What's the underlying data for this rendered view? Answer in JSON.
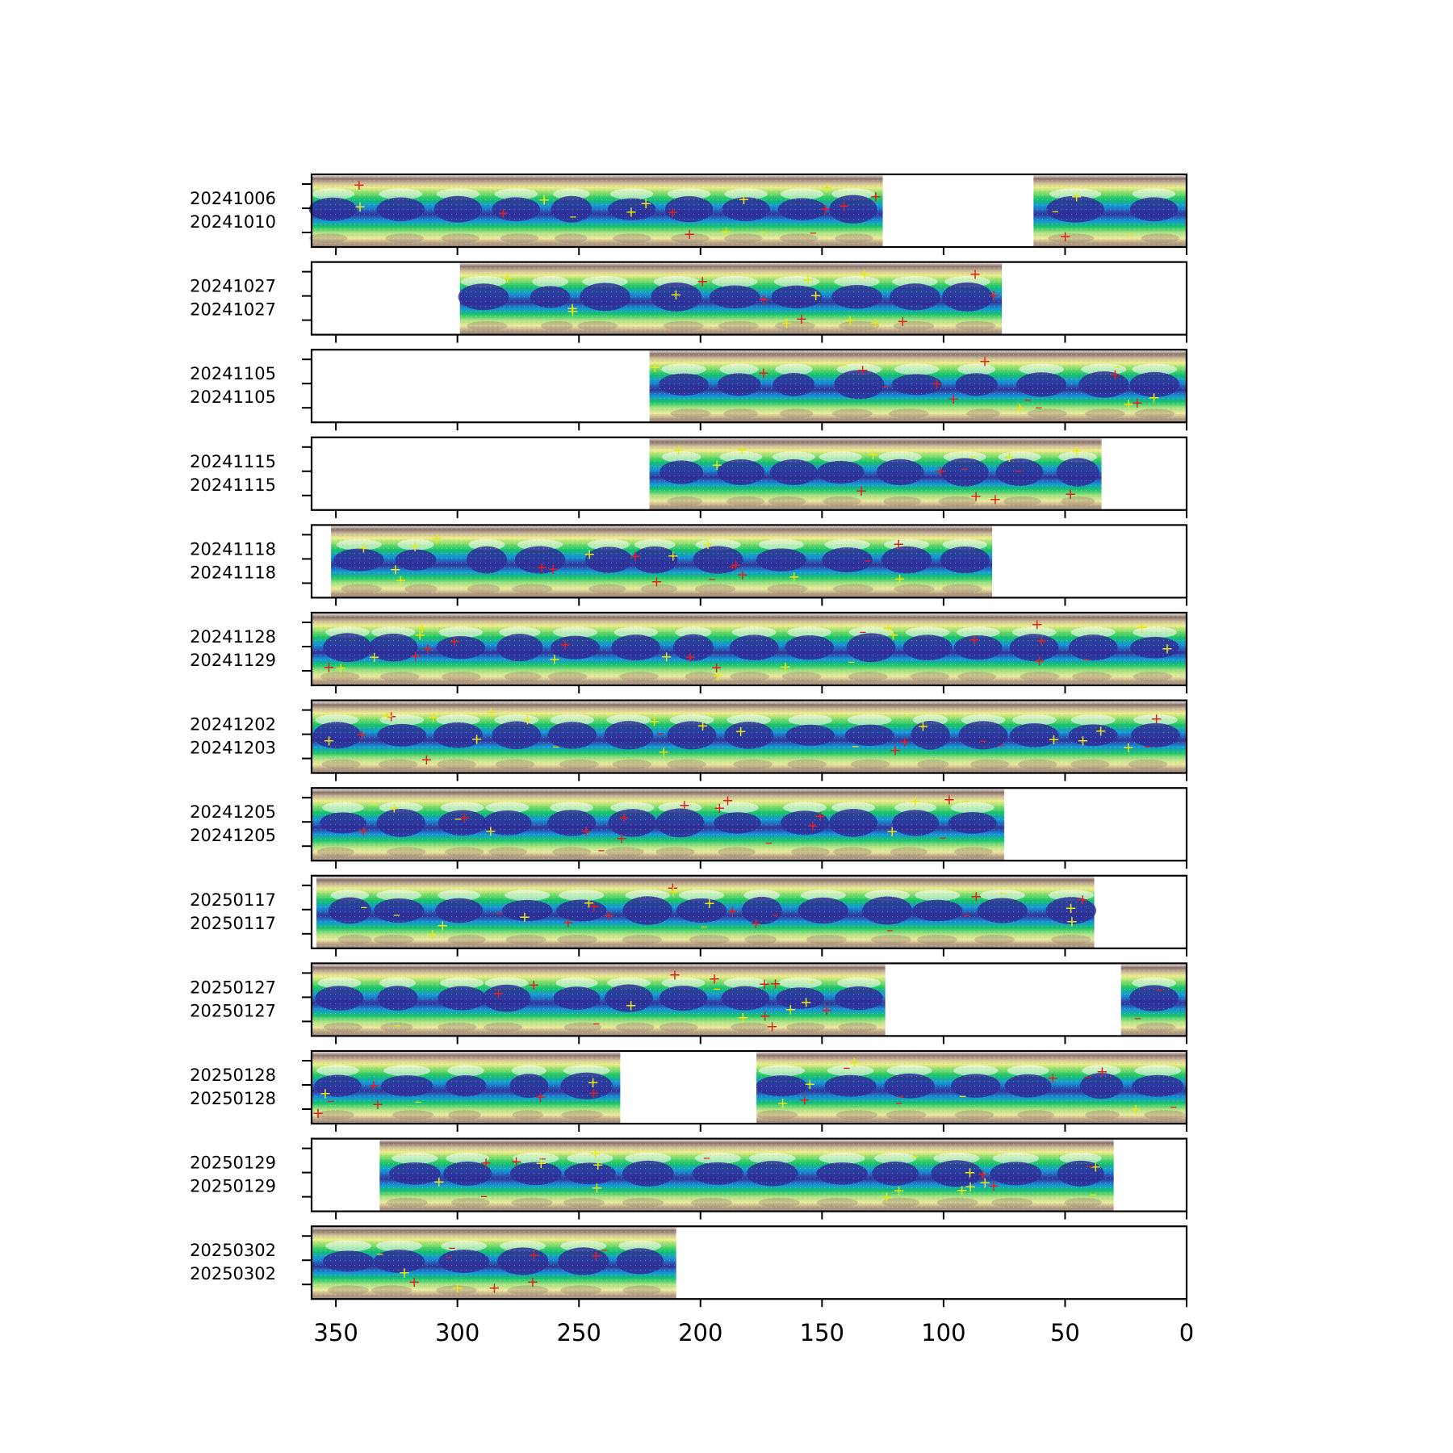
{
  "chart_data": {
    "type": "heatmap",
    "xlim": [
      360,
      0
    ],
    "xticks": [
      350,
      300,
      250,
      200,
      150,
      100,
      50,
      0
    ],
    "x_axis_inverted": true,
    "colormap": "terrain",
    "markers": {
      "positive": "+",
      "negative": "–",
      "colors": [
        "#e8e815",
        "#e02020"
      ]
    },
    "panels": [
      {
        "label_top": "20241006",
        "label_bottom": "20241010",
        "segments": [
          [
            360,
            125
          ],
          [
            63,
            0
          ]
        ]
      },
      {
        "label_top": "20241027",
        "label_bottom": "20241027",
        "segments": [
          [
            299,
            76
          ]
        ]
      },
      {
        "label_top": "20241105",
        "label_bottom": "20241105",
        "segments": [
          [
            221,
            0
          ]
        ]
      },
      {
        "label_top": "20241115",
        "label_bottom": "20241115",
        "segments": [
          [
            221,
            35
          ]
        ]
      },
      {
        "label_top": "20241118",
        "label_bottom": "20241118",
        "segments": [
          [
            352,
            80
          ]
        ]
      },
      {
        "label_top": "20241128",
        "label_bottom": "20241129",
        "segments": [
          [
            360,
            0
          ]
        ]
      },
      {
        "label_top": "20241202",
        "label_bottom": "20241203",
        "segments": [
          [
            360,
            0
          ]
        ]
      },
      {
        "label_top": "20241205",
        "label_bottom": "20241205",
        "segments": [
          [
            360,
            75
          ]
        ]
      },
      {
        "label_top": "20250117",
        "label_bottom": "20250117",
        "segments": [
          [
            358,
            38
          ]
        ]
      },
      {
        "label_top": "20250127",
        "label_bottom": "20250127",
        "segments": [
          [
            360,
            124
          ],
          [
            27,
            0
          ]
        ]
      },
      {
        "label_top": "20250128",
        "label_bottom": "20250128",
        "segments": [
          [
            360,
            233
          ],
          [
            177,
            0
          ]
        ]
      },
      {
        "label_top": "20250129",
        "label_bottom": "20250129",
        "segments": [
          [
            332,
            30
          ]
        ]
      },
      {
        "label_top": "20250302",
        "label_bottom": "20250302",
        "segments": [
          [
            360,
            210
          ]
        ]
      }
    ]
  }
}
